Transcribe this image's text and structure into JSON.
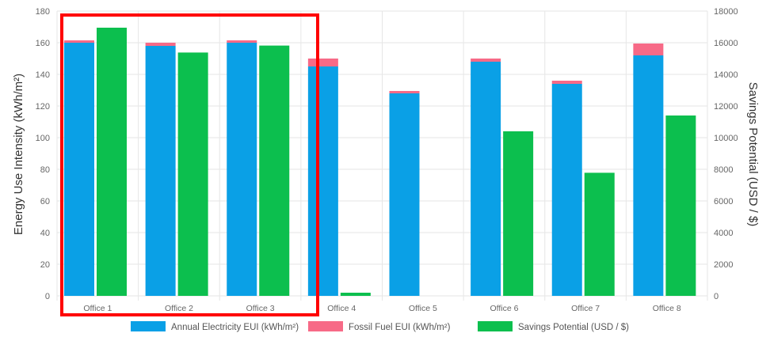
{
  "chart_data": {
    "type": "bar",
    "categories": [
      "Office 1",
      "Office 2",
      "Office 3",
      "Office 4",
      "Office 5",
      "Office 6",
      "Office 7",
      "Office 8"
    ],
    "series": [
      {
        "name": "Annual Electricity EUI (kWh/m²)",
        "axis": "left",
        "stack": "eui",
        "color": "#0aa0e6",
        "values": [
          160,
          158,
          160,
          145,
          128,
          148,
          134,
          152
        ]
      },
      {
        "name": "Fossil Fuel EUI (kWh/m²)",
        "axis": "left",
        "stack": "eui",
        "color": "#f76a87",
        "values": [
          1.5,
          2,
          1.5,
          5,
          1.5,
          2,
          2,
          7.5
        ]
      },
      {
        "name": "Savings Potential (USD / $)",
        "axis": "right",
        "stack": "savings",
        "color": "#0cbf4e",
        "values": [
          16950,
          15380,
          15820,
          200,
          0,
          10400,
          7780,
          11400
        ]
      }
    ],
    "ylabel": "Energy Use Intensity (kWh/m²)",
    "ylabel_right": "Savings Potential (USD / $)",
    "ylim": [
      0,
      180
    ],
    "yticks": [
      0,
      20,
      40,
      60,
      80,
      100,
      120,
      140,
      160,
      180
    ],
    "ylim_right": [
      0,
      18000
    ],
    "yticks_right": [
      0,
      2000,
      4000,
      6000,
      8000,
      10000,
      12000,
      14000,
      16000,
      18000
    ],
    "grid": true,
    "legend_position": "bottom",
    "highlight": {
      "shape": "rectangle",
      "color": "#ff0000",
      "covers": [
        "Office 1",
        "Office 2",
        "Office 3"
      ]
    }
  }
}
